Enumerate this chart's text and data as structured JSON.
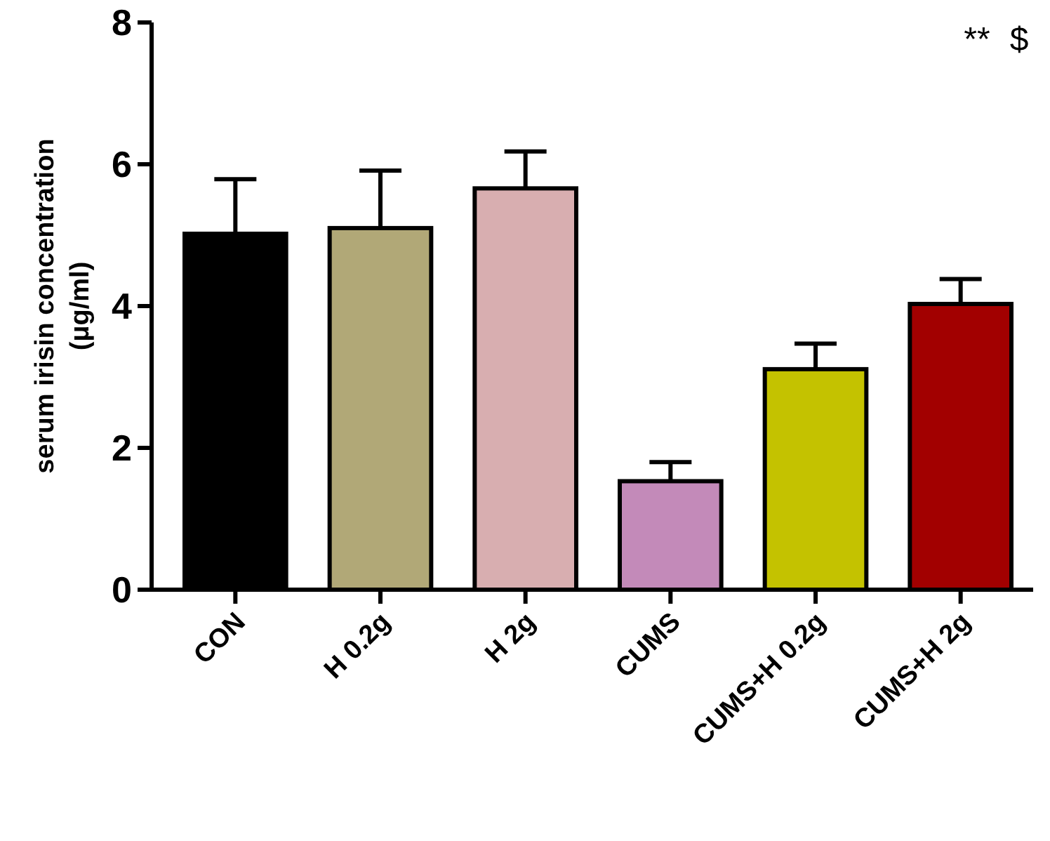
{
  "chart_data": {
    "type": "bar",
    "ylabel": "serum irisin concentration (μg/ml)",
    "categories": [
      "CON",
      "H 0.2g",
      "H 2g",
      "CUMS",
      "CUMS+H 0.2g",
      "CUMS+H 2g"
    ],
    "values": [
      5.02,
      5.1,
      5.66,
      1.53,
      3.11,
      4.03
    ],
    "errors": [
      [
        5.02,
        5.79
      ],
      [
        5.1,
        5.91
      ],
      [
        5.66,
        6.18
      ],
      [
        1.53,
        1.8
      ],
      [
        3.11,
        3.47
      ],
      [
        4.03,
        4.38
      ]
    ],
    "colors": [
      "#000000",
      "#b1a877",
      "#d8aeb0",
      "#c38ab9",
      "#c4c200",
      "#a20000"
    ],
    "ylim": [
      0,
      8
    ],
    "yticks": [
      0,
      2,
      4,
      6,
      8
    ],
    "grid": false,
    "annotations": [
      "**",
      "$"
    ]
  }
}
